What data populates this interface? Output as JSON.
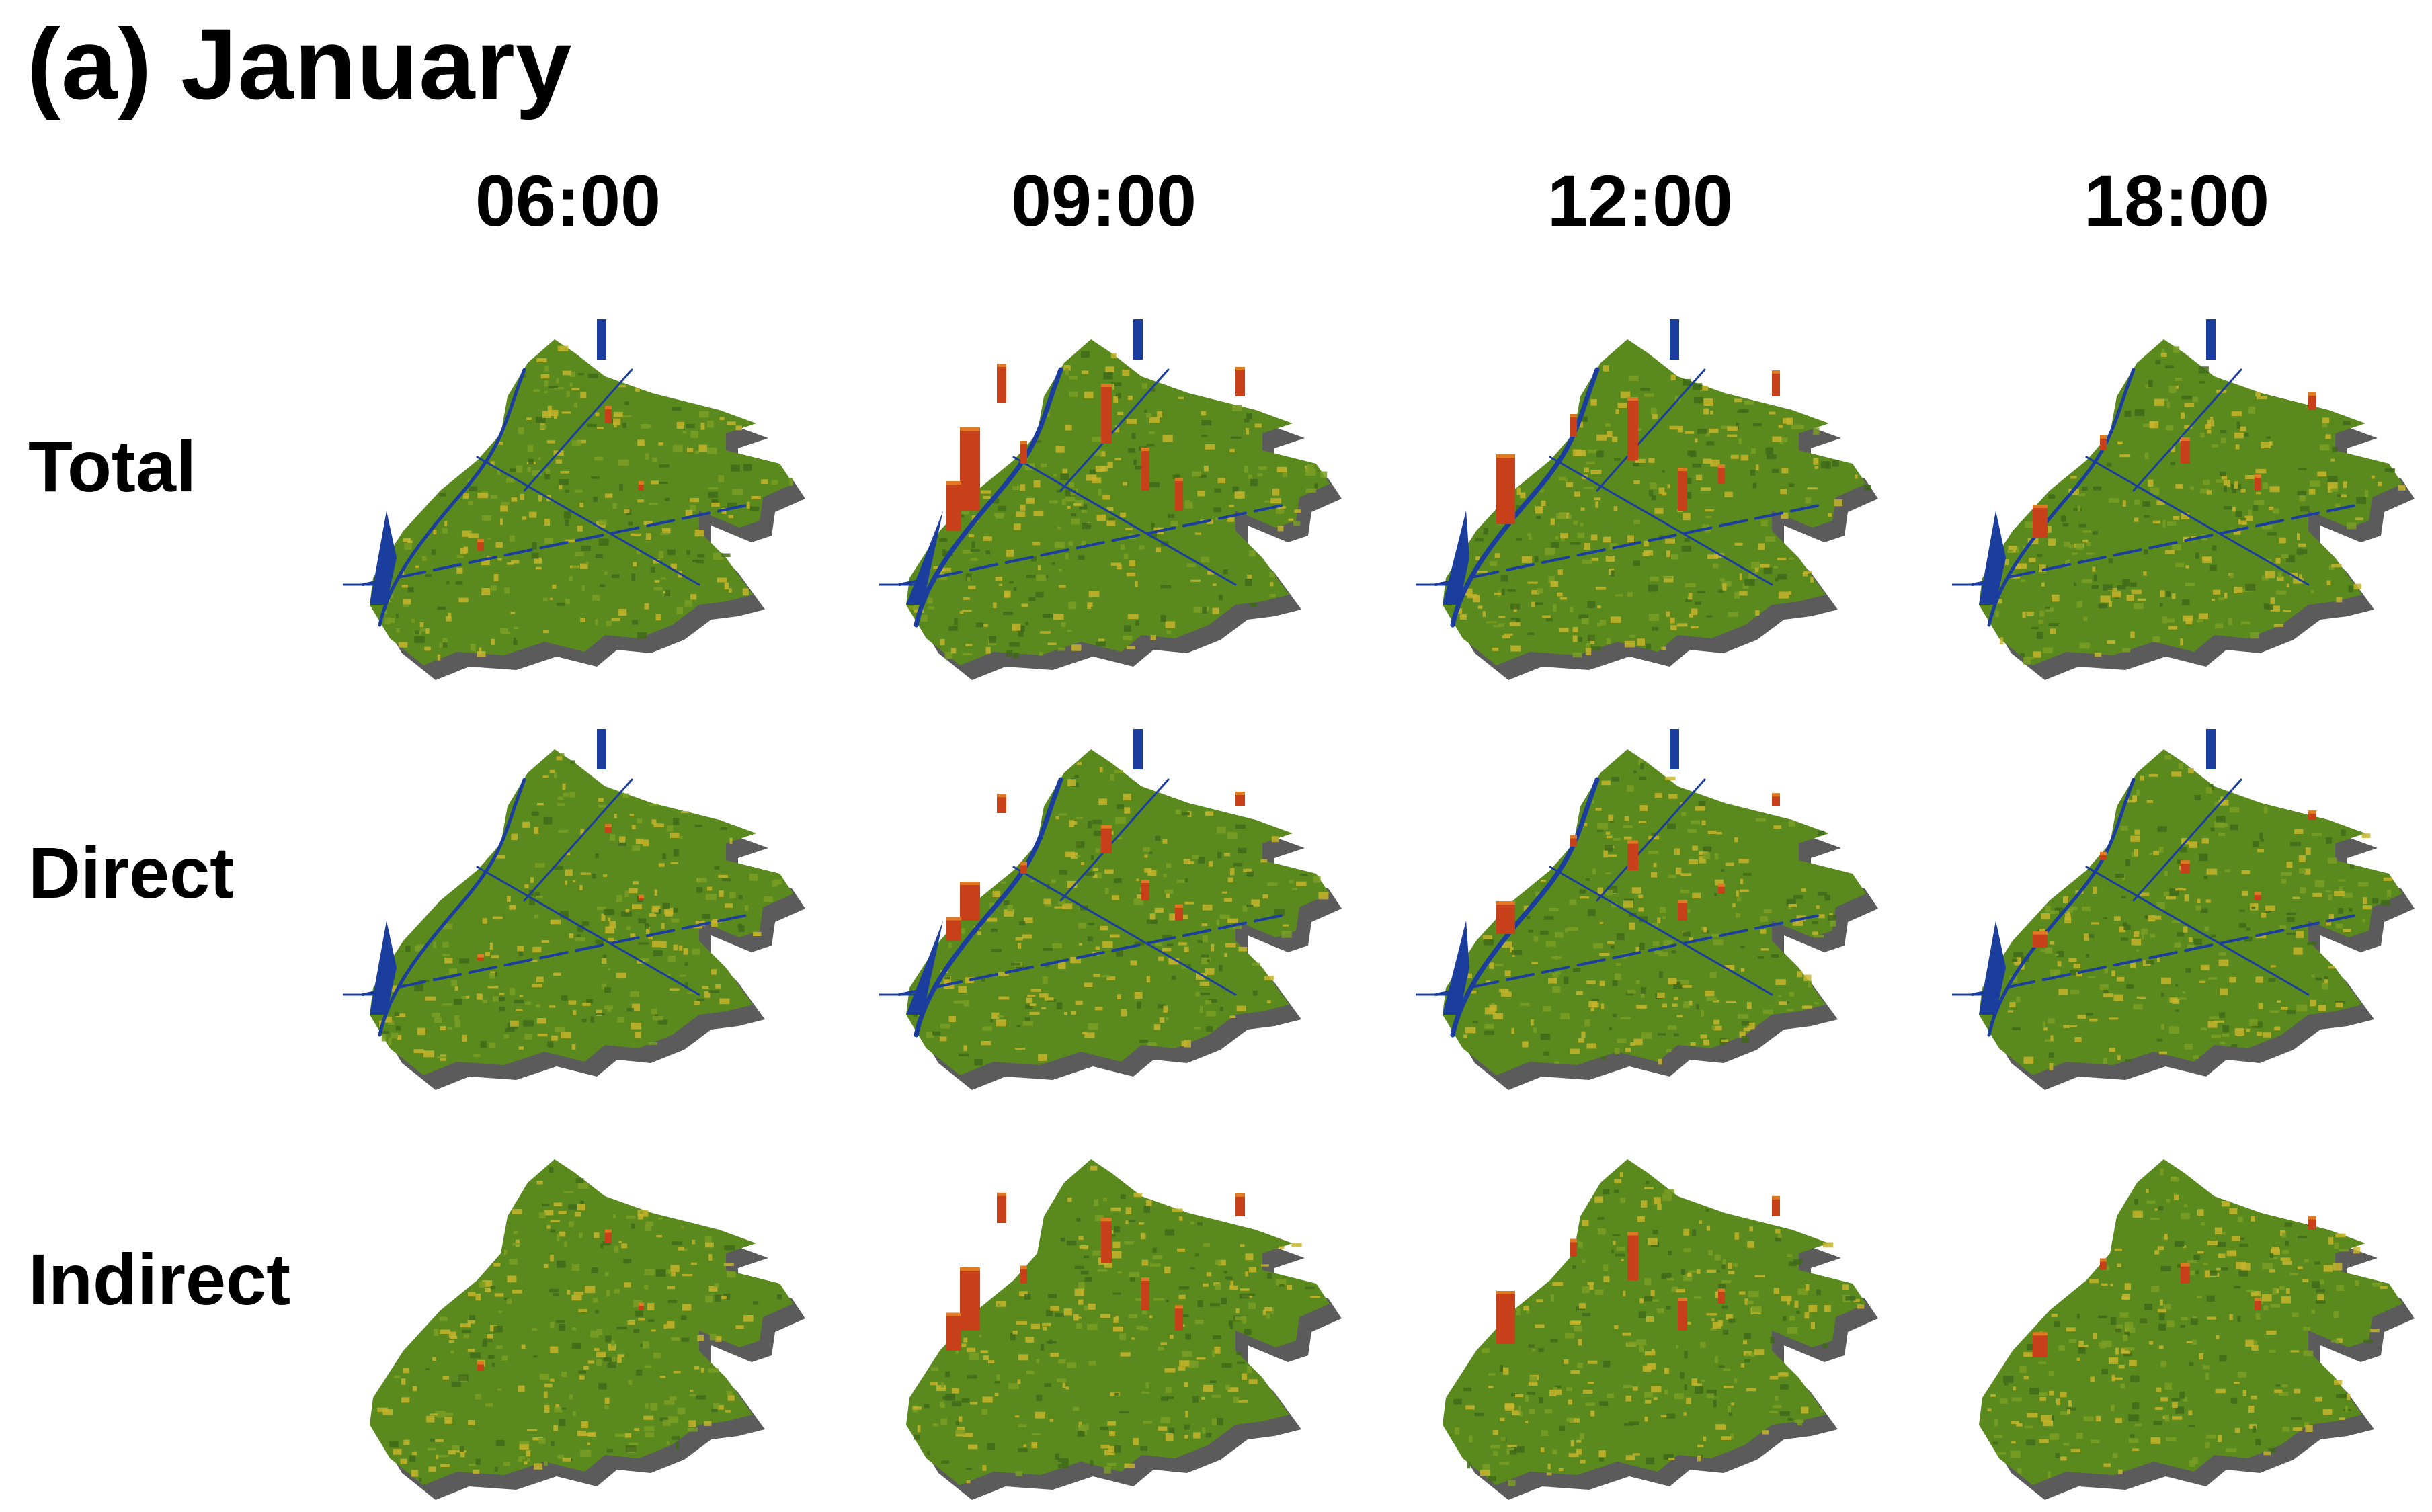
{
  "title": "(a) January",
  "columns": [
    "06:00",
    "09:00",
    "12:00",
    "18:00"
  ],
  "rows": [
    "Total",
    "Direct",
    "Indirect"
  ],
  "colors": {
    "ground_green": "#5a8a1e",
    "ground_yellow": "#c7b42c",
    "shadow_grey": "#5b5b5b",
    "water_blue": "#1a3d9e",
    "hotspot_red": "#c8401a",
    "hotspot_orange": "#e07a22"
  }
}
